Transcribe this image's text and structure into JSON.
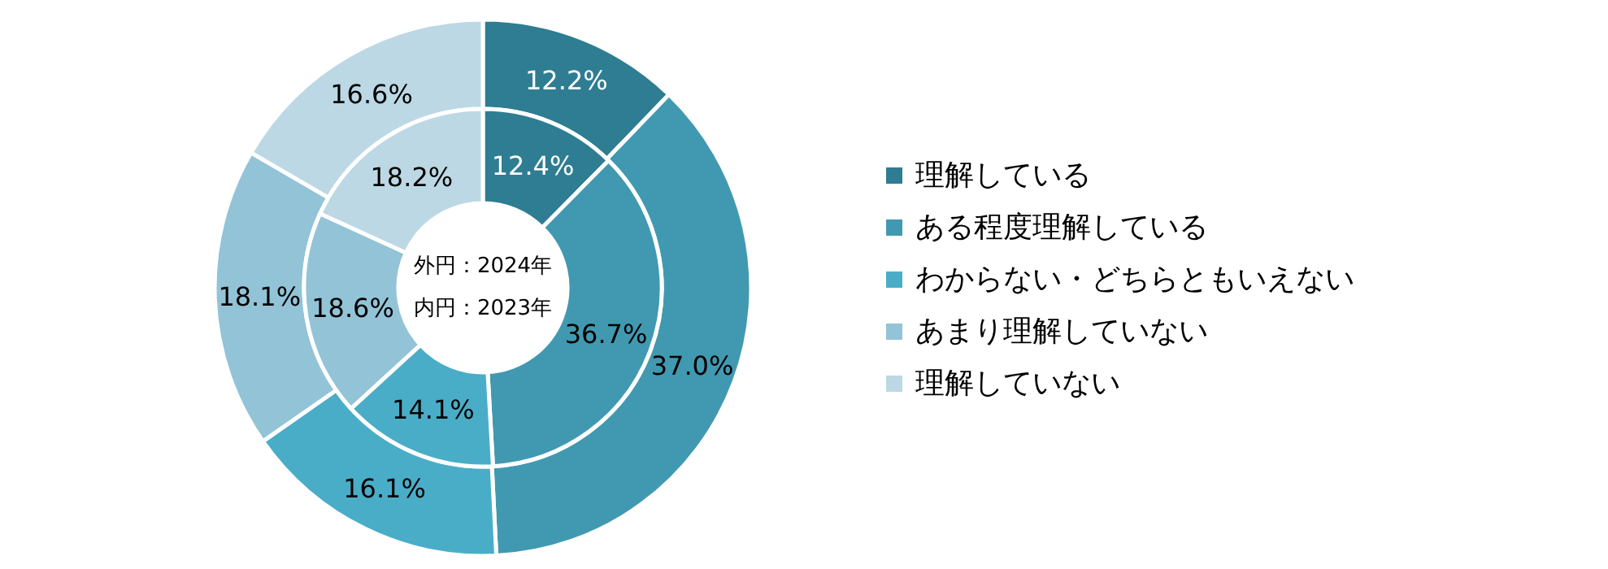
{
  "chart_data": {
    "type": "donut",
    "categories": [
      "理解している",
      "ある程度理解している",
      "わからない・どちらともいえない",
      "あまり理解していない",
      "理解していない"
    ],
    "colors": [
      "#2e7d92",
      "#4199b1",
      "#4aadc8",
      "#93c3d6",
      "#bcd8e4"
    ],
    "series": [
      {
        "values": [
          12.2,
          37.0,
          16.1,
          18.1,
          16.6
        ],
        "value_labels": [
          "12.2%",
          "37.0%",
          "16.1%",
          "18.1%",
          "16.6%"
        ]
      },
      {
        "values": [
          12.4,
          36.7,
          14.1,
          18.6,
          18.2
        ],
        "value_labels": [
          "12.4%",
          "36.7%",
          "14.1%",
          "18.6%",
          "18.2%"
        ]
      }
    ],
    "legend": "right",
    "annotations": [
      "外円：2024年",
      "内円：2023年"
    ]
  }
}
